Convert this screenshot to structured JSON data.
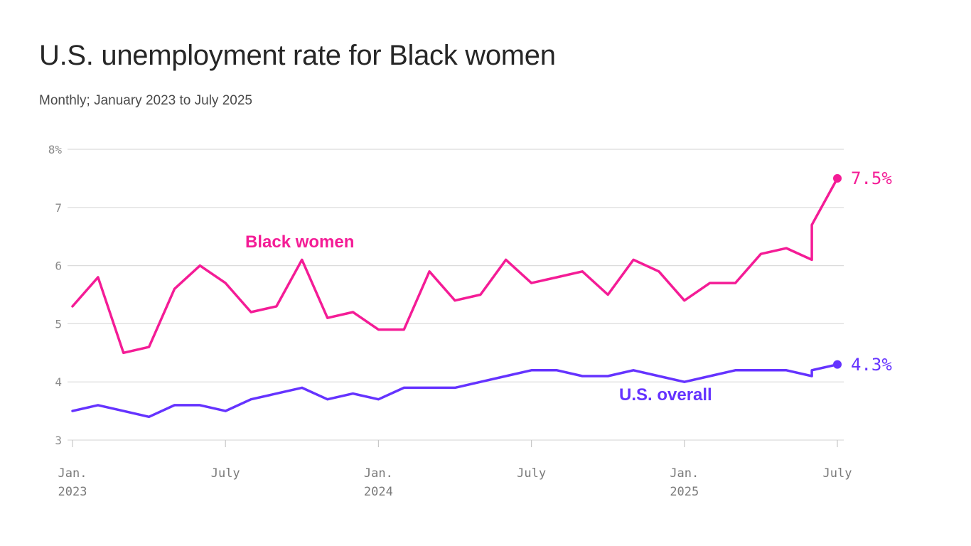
{
  "header": {
    "title": "U.S. unemployment rate for Black women",
    "subtitle": "Monthly; January 2023 to July 2025"
  },
  "colors": {
    "black_women": "#f41c96",
    "us_overall": "#6533ff",
    "grid": "#dcdcdc",
    "axis_text": "#8a8a8a"
  },
  "chart_data": {
    "type": "line",
    "title": "U.S. unemployment rate for Black women",
    "subtitle": "Monthly; January 2023 to July 2025",
    "xlabel": "",
    "ylabel": "",
    "ylim": [
      3,
      8
    ],
    "yticks": [
      {
        "value": 3,
        "label": "3"
      },
      {
        "value": 4,
        "label": "4"
      },
      {
        "value": 5,
        "label": "5"
      },
      {
        "value": 6,
        "label": "6"
      },
      {
        "value": 7,
        "label": "7"
      },
      {
        "value": 8,
        "label": "8%"
      }
    ],
    "xticks": [
      {
        "date": "2023-01",
        "label": "Jan.",
        "label2": "2023"
      },
      {
        "date": "2023-07",
        "label": "July",
        "label2": ""
      },
      {
        "date": "2024-01",
        "label": "Jan.",
        "label2": "2024"
      },
      {
        "date": "2024-07",
        "label": "July",
        "label2": ""
      },
      {
        "date": "2025-01",
        "label": "Jan.",
        "label2": "2025"
      },
      {
        "date": "2025-07",
        "label": "July",
        "label2": ""
      }
    ],
    "x": [
      "2023-01",
      "2023-02",
      "2023-03",
      "2023-04",
      "2023-05",
      "2023-06",
      "2023-07",
      "2023-08",
      "2023-09",
      "2023-10",
      "2023-11",
      "2023-12",
      "2024-01",
      "2024-02",
      "2024-03",
      "2024-04",
      "2024-05",
      "2024-06",
      "2024-07",
      "2024-08",
      "2024-09",
      "2024-10",
      "2024-11",
      "2024-12",
      "2025-01",
      "2025-02",
      "2025-03",
      "2025-04",
      "2025-05",
      "2025-06",
      "2025-07"
    ],
    "series": [
      {
        "name": "Black women",
        "key": "black_women",
        "values": [
          5.3,
          5.8,
          4.5,
          4.6,
          5.6,
          6.0,
          5.7,
          5.2,
          5.3,
          6.1,
          5.1,
          5.2,
          4.9,
          4.9,
          5.9,
          5.4,
          5.5,
          6.1,
          5.7,
          5.8,
          5.9,
          5.5,
          6.1,
          5.9,
          5.4,
          5.7,
          5.7,
          6.2,
          6.3,
          6.1,
          7.5
        ],
        "revised_june": 6.7,
        "end_label": "7.5%"
      },
      {
        "name": "U.S. overall",
        "key": "us_overall",
        "values": [
          3.5,
          3.6,
          3.5,
          3.4,
          3.6,
          3.6,
          3.5,
          3.7,
          3.8,
          3.9,
          3.7,
          3.8,
          3.7,
          3.9,
          3.9,
          3.9,
          4.0,
          4.1,
          4.2,
          4.2,
          4.1,
          4.1,
          4.2,
          4.1,
          4.0,
          4.1,
          4.2,
          4.2,
          4.2,
          4.1,
          4.3
        ],
        "revised_june": 4.2,
        "end_label": "4.3%"
      }
    ],
    "grid": true,
    "legend": "inline labels"
  }
}
